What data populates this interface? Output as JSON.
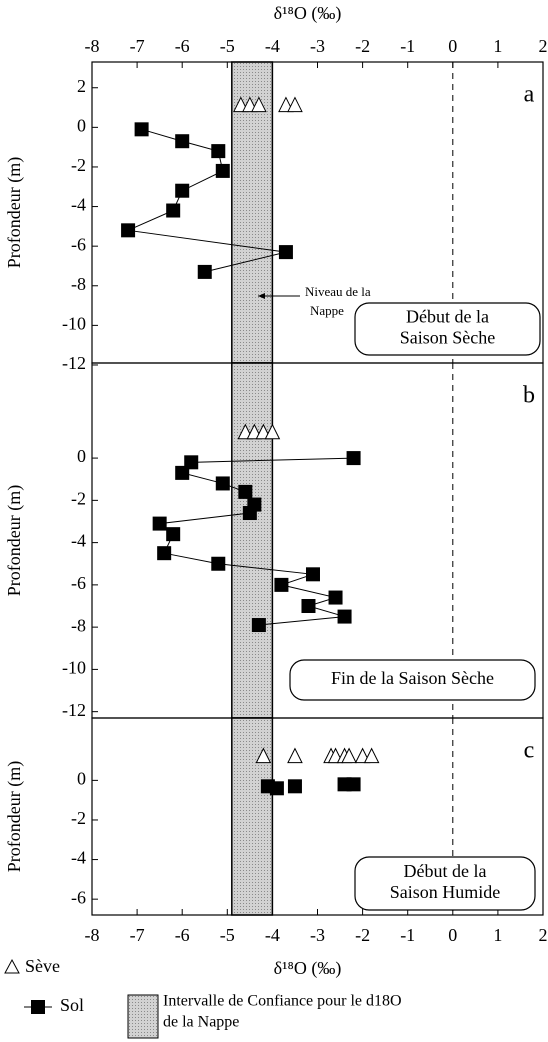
{
  "chart_data": [
    {
      "type": "scatter",
      "panel_label": "a",
      "xlabel": "δ¹⁸O (‰)",
      "xaxis_position": "top",
      "xlim": [
        -8,
        2
      ],
      "xticks": [
        -8,
        -7,
        -6,
        -5,
        -4,
        -3,
        -2,
        -1,
        0,
        1,
        2
      ],
      "ylabel": "Profondeur (m)",
      "ylim": [
        -11.9,
        3.3
      ],
      "yticks": [
        2,
        0,
        -2,
        -4,
        -6,
        -8,
        -10,
        -12
      ],
      "band": {
        "range": [
          -4.9,
          -4.0
        ],
        "label": [
          "Intervalle de Confiance pour le d18O",
          "de la Nappe"
        ]
      },
      "reference_line": 0,
      "annotation": [
        "Début de la",
        "Saison Sèche"
      ],
      "note": [
        "Niveau de la",
        "Nappe"
      ],
      "series": [
        {
          "name": "Sève",
          "marker": "triangle",
          "color": "#000000",
          "x": [
            -4.7,
            -4.5,
            -4.3,
            -3.7,
            -3.5
          ],
          "values": [
            1.1,
            1.1,
            1.1,
            1.1,
            1.1
          ]
        },
        {
          "name": "Sol",
          "marker": "square",
          "connect": true,
          "color": "#000000",
          "x": [
            -6.9,
            -6.0,
            -5.2,
            -5.1,
            -6.0,
            -6.2,
            -7.2,
            -3.7,
            -5.5
          ],
          "values": [
            -0.1,
            -0.7,
            -1.2,
            -2.2,
            -3.2,
            -4.2,
            -5.2,
            -6.3,
            -7.3
          ]
        }
      ]
    },
    {
      "type": "scatter",
      "panel_label": "b",
      "xlim": [
        -8,
        2
      ],
      "ylabel": "Profondeur (m)",
      "ylim": [
        -12.3,
        4.5
      ],
      "yticks": [
        0,
        -2,
        -4,
        -6,
        -8,
        -10,
        -12
      ],
      "band": {
        "range": [
          -4.9,
          -4.0
        ]
      },
      "reference_line": 0,
      "annotation": [
        "Fin de la Saison Sèche"
      ],
      "series": [
        {
          "marker": "triangle",
          "color": "#000000",
          "x": [
            -4.6,
            -4.4,
            -4.2,
            -4.0
          ],
          "values": [
            1.2,
            1.2,
            1.2,
            1.2
          ]
        },
        {
          "marker": "square",
          "connect": true,
          "color": "#000000",
          "x": [
            -2.2,
            -5.8,
            -6.0,
            -5.1,
            -4.6,
            -4.4,
            -4.5,
            -6.5,
            -6.2,
            -6.4,
            -5.2,
            -3.1,
            -3.8,
            -2.6,
            -3.2,
            -2.4,
            -4.3
          ],
          "values": [
            0,
            -0.2,
            -0.7,
            -1.2,
            -1.6,
            -2.2,
            -2.6,
            -3.1,
            -3.6,
            -4.5,
            -5.0,
            -5.5,
            -6.0,
            -6.6,
            -7.0,
            -7.5,
            -7.9
          ]
        }
      ]
    },
    {
      "type": "scatter",
      "panel_label": "c",
      "xlabel": "δ¹⁸O (‰)",
      "xaxis_position": "bottom",
      "xlim": [
        -8,
        2
      ],
      "xticks": [
        -8,
        -7,
        -6,
        -5,
        -4,
        -3,
        -2,
        -1,
        0,
        1,
        2
      ],
      "ylabel": "Profondeur (m)",
      "ylim": [
        -6.8,
        3.15
      ],
      "yticks": [
        0,
        -2,
        -4,
        -6
      ],
      "band": {
        "range": [
          -4.9,
          -4.0
        ]
      },
      "reference_line": 0,
      "annotation": [
        "Début de la",
        "Saison Humide"
      ],
      "series": [
        {
          "marker": "triangle",
          "color": "#000000",
          "x": [
            -4.2,
            -3.5,
            -2.7,
            -2.6,
            -2.4,
            -2.3,
            -2.0,
            -1.8
          ],
          "values": [
            1.2,
            1.2,
            1.2,
            1.2,
            1.2,
            1.2,
            1.2,
            1.2
          ]
        },
        {
          "marker": "square",
          "connect": false,
          "color": "#000000",
          "x": [
            -4.1,
            -3.9,
            -3.5,
            -2.4,
            -2.2
          ],
          "values": [
            -0.3,
            -0.4,
            -0.3,
            -0.2,
            -0.2
          ]
        }
      ]
    }
  ]
}
